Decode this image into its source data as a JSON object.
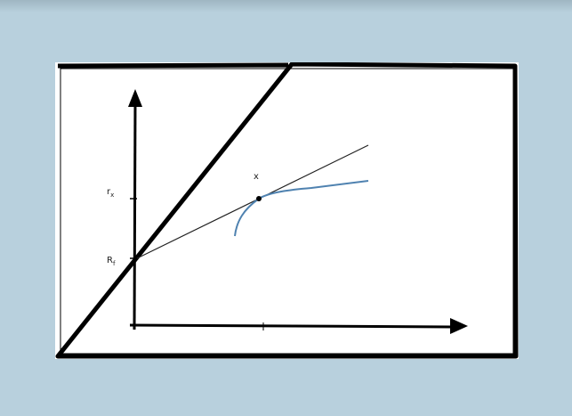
{
  "diagram": {
    "labels": {
      "rx": "r",
      "rx_sub": "x",
      "rf": "R",
      "rf_sub": "f",
      "point": "x"
    },
    "colors": {
      "background": "#b8d0dd",
      "frame": "#000000",
      "axes": "#000000",
      "tangent_line": "#222222",
      "frontier_curve": "#4f82b0",
      "point": "#000000"
    }
  }
}
